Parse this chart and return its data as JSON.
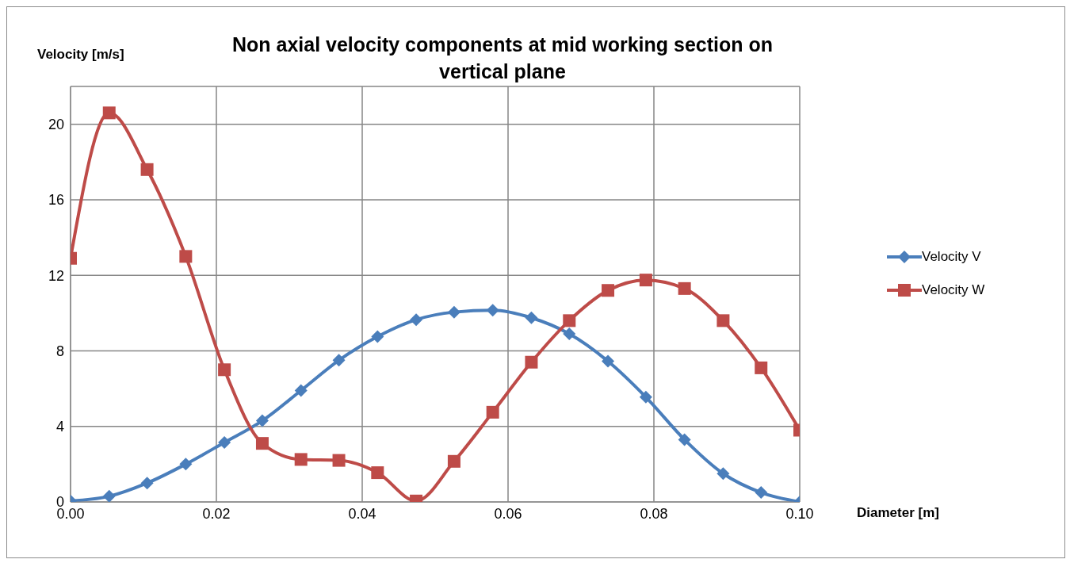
{
  "chart_data": {
    "type": "line",
    "title": "Non axial velocity components at mid working section on vertical plane",
    "xlabel": "Diameter [m]",
    "ylabel": "Velocity [m/s]",
    "x": [
      0,
      0.0053,
      0.0105,
      0.0158,
      0.0211,
      0.0263,
      0.0316,
      0.0368,
      0.0421,
      0.0474,
      0.0526,
      0.0579,
      0.0632,
      0.0684,
      0.0737,
      0.0789,
      0.0842,
      0.0895,
      0.0947,
      0.1
    ],
    "series": [
      {
        "name": "Velocity V",
        "color": "#4a7ebb",
        "marker": "diamond",
        "values": [
          0.05,
          0.3,
          1.0,
          2.0,
          3.15,
          4.3,
          5.9,
          7.5,
          8.75,
          9.65,
          10.05,
          10.15,
          9.75,
          8.9,
          7.45,
          5.55,
          3.3,
          1.5,
          0.5,
          0
        ]
      },
      {
        "name": "Velocity W",
        "color": "#be4b48",
        "marker": "square",
        "values": [
          12.9,
          20.6,
          17.6,
          13.0,
          7.0,
          3.1,
          2.25,
          2.2,
          1.55,
          0.05,
          2.15,
          4.75,
          7.4,
          9.6,
          11.2,
          11.75,
          11.3,
          9.6,
          7.1,
          3.8
        ]
      }
    ],
    "xlim": [
      0,
      0.1
    ],
    "xticks": [
      {
        "value": 0,
        "label": "0.00"
      },
      {
        "value": 0.02,
        "label": "0.02"
      },
      {
        "value": 0.04,
        "label": "0.04"
      },
      {
        "value": 0.06,
        "label": "0.06"
      },
      {
        "value": 0.08,
        "label": "0.08"
      },
      {
        "value": 0.1,
        "label": "0.10"
      }
    ],
    "ylim": [
      0,
      22
    ],
    "yticks": [
      0,
      4,
      8,
      12,
      16,
      20
    ],
    "grid": true,
    "legend": "right",
    "line_style": "solid"
  }
}
